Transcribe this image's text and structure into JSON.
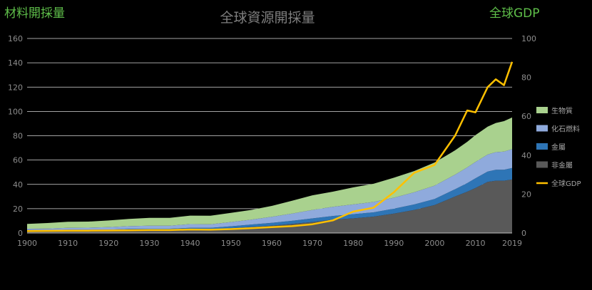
{
  "chart_data": {
    "type": "area",
    "title": "全球資源開採量",
    "left_axis_label": "材料開採量",
    "right_axis_label": "全球GDP",
    "ylim_left": [
      0,
      160
    ],
    "ylim_right": [
      0,
      100
    ],
    "y_ticks_left": [
      0,
      20,
      40,
      60,
      80,
      100,
      120,
      140,
      160
    ],
    "y_ticks_right": [
      0,
      20,
      40,
      60,
      80,
      100
    ],
    "x_ticks": [
      "1900",
      "1910",
      "1920",
      "1930",
      "1940",
      "1950",
      "1960",
      "1970",
      "1980",
      "1990",
      "2000",
      "2010",
      "2019"
    ],
    "x": [
      1900,
      1905,
      1910,
      1915,
      1920,
      1925,
      1930,
      1935,
      1940,
      1945,
      1950,
      1955,
      1960,
      1965,
      1970,
      1975,
      1980,
      1985,
      1990,
      1995,
      2000,
      2005,
      2008,
      2010,
      2013,
      2015,
      2017,
      2019
    ],
    "grid": true,
    "legend_position": "right",
    "series": [
      {
        "name": "非金屬",
        "axis": "left",
        "stack": true,
        "color": "#595959",
        "values": [
          2,
          2,
          2,
          2,
          2,
          2.5,
          2.5,
          2.5,
          3,
          3,
          4,
          5,
          6,
          7.5,
          9,
          11,
          12,
          13.5,
          16,
          19,
          23,
          30,
          34,
          37,
          42,
          43,
          43,
          44
        ]
      },
      {
        "name": "金屬",
        "axis": "left",
        "stack": true,
        "color": "#2e75b6",
        "values": [
          0.5,
          0.5,
          0.7,
          0.7,
          0.8,
          0.9,
          1,
          1,
          1.3,
          1.2,
          1.5,
          2,
          2.3,
          2.5,
          3,
          3,
          3.5,
          3.5,
          4,
          4.5,
          5,
          6,
          7,
          8,
          8.5,
          9,
          9,
          9.5
        ]
      },
      {
        "name": "化石燃料",
        "axis": "left",
        "stack": true,
        "color": "#8faadc",
        "values": [
          1,
          1.2,
          1.5,
          1.7,
          2,
          2.2,
          2.5,
          2.5,
          3,
          3,
          3.5,
          4,
          5,
          6,
          7,
          7.5,
          8,
          8.5,
          9,
          10,
          11,
          12,
          13,
          13.5,
          14,
          14.5,
          15,
          15.5
        ]
      },
      {
        "name": "生物質",
        "axis": "left",
        "stack": true,
        "color": "#a9d18e",
        "values": [
          4,
          4.5,
          5,
          5,
          5.5,
          6,
          6.5,
          6.5,
          7,
          7,
          7.5,
          8,
          9,
          10.5,
          12,
          12.5,
          14,
          15,
          16.5,
          17.5,
          19,
          20,
          21,
          22,
          23,
          24,
          25,
          26
        ]
      },
      {
        "name": "全球GDP",
        "axis": "right",
        "stack": false,
        "color": "#ffc000",
        "values": [
          1,
          1.1,
          1.2,
          1.2,
          1.3,
          1.4,
          1.5,
          1.5,
          1.8,
          1.7,
          2,
          2.5,
          3,
          3.5,
          4.5,
          6.5,
          11,
          13,
          21,
          31,
          35,
          50,
          63,
          62,
          75,
          79,
          76,
          88
        ]
      }
    ]
  }
}
